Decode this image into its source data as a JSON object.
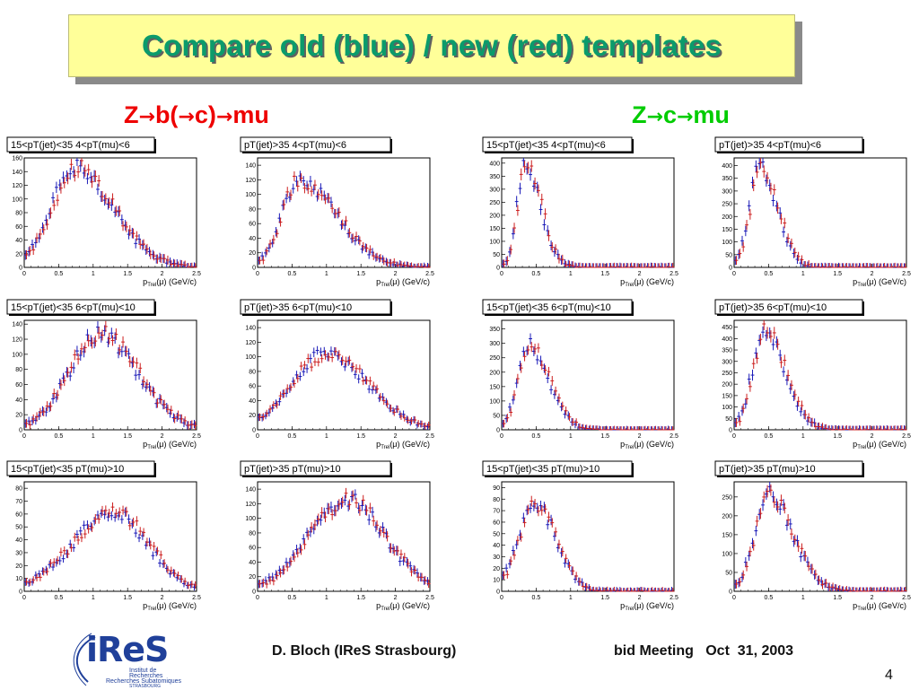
{
  "title": "Compare old (blue) / new (red) templates",
  "sections": {
    "left": {
      "parts": [
        "Z",
        "b(",
        "c)",
        "mu"
      ],
      "color": "#ee0000"
    },
    "right": {
      "parts": [
        "Z",
        "c",
        "mu"
      ],
      "color": "#00cc00"
    }
  },
  "colors": {
    "old": "#1a1ab8",
    "new": "#cc1f1f",
    "title": "#0b9b6b",
    "title_bg": "#ffff99"
  },
  "x_axis_label": "(GeV/c)",
  "x_axis_symbol": "p",
  "x_axis_symbol_sub": "Trel",
  "x_axis_symbol_arg": "(μ)",
  "x_tick_labels": [
    "0",
    "0.5",
    "1",
    "1.5",
    "2",
    "2.5"
  ],
  "chart_data": [
    {
      "type": "histogram",
      "panel": "Z→b(→c)→mu",
      "label": "15<pT(jet)<35 4<pT(mu)<6",
      "xlim": [
        0,
        2.5
      ],
      "ylim": [
        0,
        160
      ],
      "yticks": [
        0,
        20,
        40,
        60,
        80,
        100,
        120,
        140,
        160
      ],
      "peak": 0.75,
      "rise": 0.35,
      "fall": 0.55,
      "series": [
        {
          "name": "old (blue)",
          "peak_value": 145
        },
        {
          "name": "new (red)",
          "peak_value": 145
        }
      ]
    },
    {
      "type": "histogram",
      "panel": "Z→b(→c)→mu",
      "label": "pT(jet)>35 4<pT(mu)<6",
      "xlim": [
        0,
        2.5
      ],
      "ylim": [
        0,
        150
      ],
      "yticks": [
        0,
        20,
        40,
        60,
        80,
        100,
        120,
        140
      ],
      "peak": 0.6,
      "rise": 0.25,
      "fall": 0.55,
      "series": [
        {
          "name": "old (blue)",
          "peak_value": 120
        },
        {
          "name": "new (red)",
          "peak_value": 120
        }
      ]
    },
    {
      "type": "histogram",
      "panel": "Z→c→mu",
      "label": "15<pT(jet)<35 4<pT(mu)<6",
      "xlim": [
        0,
        2.5
      ],
      "ylim": [
        0,
        420
      ],
      "yticks": [
        0,
        50,
        100,
        150,
        200,
        250,
        300,
        350,
        400
      ],
      "peak": 0.35,
      "rise": 0.12,
      "fall": 0.22,
      "series": [
        {
          "name": "old (blue)",
          "peak_value": 400
        },
        {
          "name": "new (red)",
          "peak_value": 400
        }
      ]
    },
    {
      "type": "histogram",
      "panel": "Z→c→mu",
      "label": "pT(jet)>35 4<pT(mu)<6",
      "xlim": [
        0,
        2.5
      ],
      "ylim": [
        0,
        430
      ],
      "yticks": [
        0,
        50,
        100,
        150,
        200,
        250,
        300,
        350,
        400
      ],
      "peak": 0.38,
      "rise": 0.15,
      "fall": 0.25,
      "series": [
        {
          "name": "old (blue)",
          "peak_value": 395
        },
        {
          "name": "new (red)",
          "peak_value": 395
        }
      ]
    },
    {
      "type": "histogram",
      "panel": "Z→b(→c)→mu",
      "label": "15<pT(jet)<35 6<pT(mu)<10",
      "xlim": [
        0,
        2.5
      ],
      "ylim": [
        0,
        145
      ],
      "yticks": [
        0,
        20,
        40,
        60,
        80,
        100,
        120,
        140
      ],
      "peak": 1.1,
      "rise": 0.45,
      "fall": 0.55,
      "series": [
        {
          "name": "old (blue)",
          "peak_value": 125
        },
        {
          "name": "new (red)",
          "peak_value": 128
        }
      ]
    },
    {
      "type": "histogram",
      "panel": "Z→b(→c)→mu",
      "label": "pT(jet)>35 6<pT(mu)<10",
      "xlim": [
        0,
        2.5
      ],
      "ylim": [
        0,
        150
      ],
      "yticks": [
        0,
        20,
        40,
        60,
        80,
        100,
        120,
        140
      ],
      "peak": 1.0,
      "rise": 0.5,
      "fall": 0.6,
      "series": [
        {
          "name": "old (blue)",
          "peak_value": 105
        },
        {
          "name": "new (red)",
          "peak_value": 105
        }
      ]
    },
    {
      "type": "histogram",
      "panel": "Z→c→mu",
      "label": "15<pT(jet)<35 6<pT(mu)<10",
      "xlim": [
        0,
        2.5
      ],
      "ylim": [
        0,
        380
      ],
      "yticks": [
        0,
        50,
        100,
        150,
        200,
        250,
        300,
        350
      ],
      "peak": 0.38,
      "rise": 0.15,
      "fall": 0.3,
      "series": [
        {
          "name": "old (blue)",
          "peak_value": 300
        },
        {
          "name": "new (red)",
          "peak_value": 300
        }
      ]
    },
    {
      "type": "histogram",
      "panel": "Z→c→mu",
      "label": "pT(jet)>35 6<pT(mu)<10",
      "xlim": [
        0,
        2.5
      ],
      "ylim": [
        0,
        480
      ],
      "yticks": [
        0,
        50,
        100,
        150,
        200,
        250,
        300,
        350,
        400,
        450
      ],
      "peak": 0.45,
      "rise": 0.18,
      "fall": 0.3,
      "series": [
        {
          "name": "old (blue)",
          "peak_value": 430
        },
        {
          "name": "new (red)",
          "peak_value": 430
        }
      ]
    },
    {
      "type": "histogram",
      "panel": "Z→b(→c)→mu",
      "label": "15<pT(jet)<35 pT(mu)>10",
      "xlim": [
        0,
        2.5
      ],
      "ylim": [
        0,
        85
      ],
      "yticks": [
        0,
        10,
        20,
        30,
        40,
        50,
        60,
        70,
        80
      ],
      "peak": 1.3,
      "rise": 0.6,
      "fall": 0.5,
      "series": [
        {
          "name": "old (blue)",
          "peak_value": 60
        },
        {
          "name": "new (red)",
          "peak_value": 62
        }
      ]
    },
    {
      "type": "histogram",
      "panel": "Z→b(→c)→mu",
      "label": "pT(jet)>35 pT(mu)>10",
      "xlim": [
        0,
        2.5
      ],
      "ylim": [
        0,
        150
      ],
      "yticks": [
        0,
        20,
        40,
        60,
        80,
        100,
        120,
        140
      ],
      "peak": 1.3,
      "rise": 0.55,
      "fall": 0.55,
      "series": [
        {
          "name": "old (blue)",
          "peak_value": 125
        },
        {
          "name": "new (red)",
          "peak_value": 125
        }
      ]
    },
    {
      "type": "histogram",
      "panel": "Z→c→mu",
      "label": "15<pT(jet)<35 pT(mu)>10",
      "xlim": [
        0,
        2.5
      ],
      "ylim": [
        0,
        95
      ],
      "yticks": [
        0,
        10,
        20,
        30,
        40,
        50,
        60,
        70,
        80,
        90
      ],
      "peak": 0.5,
      "rise": 0.25,
      "fall": 0.3,
      "series": [
        {
          "name": "old (blue)",
          "peak_value": 75
        },
        {
          "name": "new (red)",
          "peak_value": 75
        }
      ]
    },
    {
      "type": "histogram",
      "panel": "Z→c→mu",
      "label": "pT(jet)>35 pT(mu)>10",
      "xlim": [
        0,
        2.5
      ],
      "ylim": [
        0,
        290
      ],
      "yticks": [
        0,
        50,
        100,
        150,
        200,
        250
      ],
      "peak": 0.5,
      "rise": 0.2,
      "fall": 0.35,
      "series": [
        {
          "name": "old (blue)",
          "peak_value": 260
        },
        {
          "name": "new (red)",
          "peak_value": 260
        }
      ]
    }
  ],
  "footer": {
    "author": "D. Bloch (IReS Strasbourg)",
    "meeting": "bid Meeting   Oct  31, 2003",
    "page": "4"
  },
  "logo": {
    "word": "iReS",
    "line1": "Institut de",
    "line2": "Recherches",
    "line3": "Recherches Subatomiques",
    "line4": "STRASBOURG"
  }
}
